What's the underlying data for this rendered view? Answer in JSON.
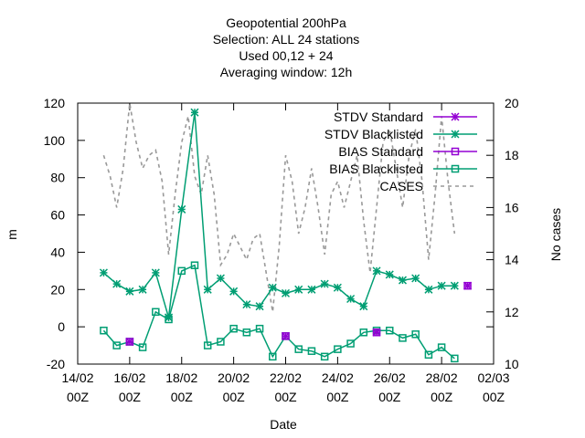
{
  "chart_data": {
    "type": "line",
    "title": [
      "Geopotential 200hPa",
      "Selection: ALL      24 stations",
      "Used  00,12  + 24",
      "Averaging window: 12h"
    ],
    "xlabel": "Date",
    "ylabel": "m",
    "y2label": "No cases",
    "x_start": "14/02 00Z",
    "x_end": "02/03 00Z",
    "xticks": [
      {
        "date": "14/02",
        "time": "00Z",
        "days": 0
      },
      {
        "date": "16/02",
        "time": "00Z",
        "days": 2
      },
      {
        "date": "18/02",
        "time": "00Z",
        "days": 4
      },
      {
        "date": "20/02",
        "time": "00Z",
        "days": 6
      },
      {
        "date": "22/02",
        "time": "00Z",
        "days": 8
      },
      {
        "date": "24/02",
        "time": "00Z",
        "days": 10
      },
      {
        "date": "26/02",
        "time": "00Z",
        "days": 12
      },
      {
        "date": "28/02",
        "time": "00Z",
        "days": 14
      },
      {
        "date": "02/03",
        "time": "00Z",
        "days": 16
      }
    ],
    "ylim": [
      -20,
      120
    ],
    "yticks": [
      -20,
      0,
      20,
      40,
      60,
      80,
      100,
      120
    ],
    "y2lim": [
      10,
      20
    ],
    "y2ticks": [
      10,
      12,
      14,
      16,
      18,
      20
    ],
    "grid": false,
    "legend_position": "top-right",
    "series": [
      {
        "name": "STDV Standard",
        "color": "#9400d3",
        "marker": "star",
        "axis": "y1",
        "points": [
          [
            2.0,
            -8
          ],
          [
            8.0,
            -5
          ],
          [
            11.5,
            -3
          ],
          [
            15.0,
            22
          ]
        ]
      },
      {
        "name": "STDV Blacklisted",
        "color": "#009e73",
        "marker": "star",
        "axis": "y1",
        "points": [
          [
            1.0,
            29
          ],
          [
            1.5,
            23
          ],
          [
            2.0,
            19
          ],
          [
            2.5,
            20
          ],
          [
            3.0,
            29
          ],
          [
            3.5,
            5
          ],
          [
            4.0,
            63
          ],
          [
            4.5,
            115
          ],
          [
            5.0,
            20
          ],
          [
            5.5,
            26
          ],
          [
            6.0,
            19
          ],
          [
            6.5,
            12
          ],
          [
            7.0,
            11
          ],
          [
            7.5,
            21
          ],
          [
            8.0,
            18
          ],
          [
            8.5,
            20
          ],
          [
            9.0,
            20
          ],
          [
            9.5,
            23
          ],
          [
            10.0,
            21
          ],
          [
            10.5,
            15
          ],
          [
            11.0,
            11
          ],
          [
            11.5,
            30
          ],
          [
            12.0,
            28
          ],
          [
            12.5,
            25
          ],
          [
            13.0,
            26
          ],
          [
            13.5,
            20
          ],
          [
            14.0,
            22
          ],
          [
            14.5,
            22
          ]
        ]
      },
      {
        "name": "BIAS Standard",
        "color": "#9400d3",
        "marker": "square",
        "axis": "y1",
        "points": [
          [
            2.0,
            -8
          ],
          [
            8.0,
            -5
          ],
          [
            11.5,
            -3
          ],
          [
            15.0,
            22
          ]
        ]
      },
      {
        "name": "BIAS Blacklisted",
        "color": "#009e73",
        "marker": "square",
        "axis": "y1",
        "points": [
          [
            1.0,
            -2
          ],
          [
            1.5,
            -10
          ],
          [
            2.0,
            -8
          ],
          [
            2.5,
            -11
          ],
          [
            3.0,
            8
          ],
          [
            3.5,
            4
          ],
          [
            4.0,
            30
          ],
          [
            4.5,
            33
          ],
          [
            5.0,
            -10
          ],
          [
            5.5,
            -8
          ],
          [
            6.0,
            -1
          ],
          [
            6.5,
            -3
          ],
          [
            7.0,
            -1
          ],
          [
            7.5,
            -16
          ],
          [
            8.0,
            -5
          ],
          [
            8.5,
            -12
          ],
          [
            9.0,
            -13
          ],
          [
            9.5,
            -16
          ],
          [
            10.0,
            -12
          ],
          [
            10.5,
            -9
          ],
          [
            11.0,
            -3
          ],
          [
            11.5,
            -2
          ],
          [
            12.0,
            -2
          ],
          [
            12.5,
            -6
          ],
          [
            13.0,
            -4
          ],
          [
            13.5,
            -15
          ],
          [
            14.0,
            -11
          ],
          [
            14.5,
            -17
          ]
        ]
      },
      {
        "name": "CASES",
        "color": "#999999",
        "dash": true,
        "axis": "y2",
        "points": [
          [
            1.0,
            18.0
          ],
          [
            1.25,
            17.2
          ],
          [
            1.5,
            16.0
          ],
          [
            1.75,
            17.5
          ],
          [
            2.0,
            20.0
          ],
          [
            2.25,
            18.5
          ],
          [
            2.5,
            17.5
          ],
          [
            2.75,
            18.0
          ],
          [
            3.0,
            18.2
          ],
          [
            3.25,
            17.0
          ],
          [
            3.5,
            14.2
          ],
          [
            3.75,
            16.5
          ],
          [
            4.0,
            18.5
          ],
          [
            4.25,
            19.5
          ],
          [
            4.5,
            17.2
          ],
          [
            4.75,
            16.5
          ],
          [
            5.0,
            18.0
          ],
          [
            5.25,
            16.5
          ],
          [
            5.5,
            13.8
          ],
          [
            5.75,
            14.2
          ],
          [
            6.0,
            15.0
          ],
          [
            6.25,
            14.5
          ],
          [
            6.5,
            14.0
          ],
          [
            6.75,
            14.8
          ],
          [
            7.0,
            15.0
          ],
          [
            7.25,
            13.5
          ],
          [
            7.5,
            12.0
          ],
          [
            7.75,
            14.5
          ],
          [
            8.0,
            18.0
          ],
          [
            8.25,
            17.0
          ],
          [
            8.5,
            15.0
          ],
          [
            8.75,
            16.0
          ],
          [
            9.0,
            17.5
          ],
          [
            9.25,
            16.0
          ],
          [
            9.5,
            14.2
          ],
          [
            9.75,
            16.5
          ],
          [
            10.0,
            17.0
          ],
          [
            10.25,
            16.0
          ],
          [
            10.5,
            17.0
          ],
          [
            10.75,
            18.0
          ],
          [
            11.0,
            15.5
          ],
          [
            11.25,
            13.5
          ],
          [
            11.5,
            16.0
          ],
          [
            11.75,
            18.5
          ],
          [
            12.0,
            19.0
          ],
          [
            12.25,
            17.5
          ],
          [
            12.5,
            16.0
          ],
          [
            12.75,
            18.0
          ],
          [
            13.0,
            19.0
          ],
          [
            13.25,
            17.0
          ],
          [
            13.5,
            14.0
          ],
          [
            13.75,
            16.5
          ],
          [
            14.0,
            19.5
          ],
          [
            14.25,
            17.0
          ],
          [
            14.5,
            15.0
          ]
        ]
      }
    ]
  }
}
